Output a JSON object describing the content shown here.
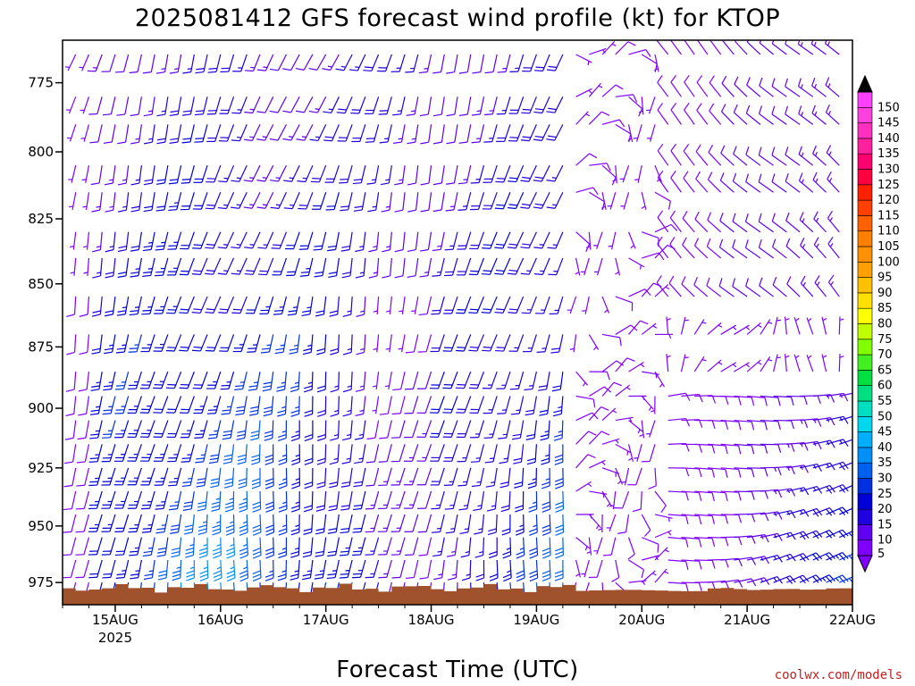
{
  "chart_data": {
    "type": "wind-barb-time-height",
    "title": "2025081412 GFS forecast wind profile (kt) for KTOP",
    "xlabel": "Forecast Time (UTC)",
    "ylabel": "",
    "x_ticks": [
      "15AUG",
      "16AUG",
      "17AUG",
      "18AUG",
      "19AUG",
      "20AUG",
      "21AUG",
      "22AUG"
    ],
    "x_year_label": "2025",
    "xlim_days": [
      14.5,
      22.0
    ],
    "y_ticks": [
      775,
      800,
      825,
      850,
      875,
      900,
      925,
      950,
      975
    ],
    "ylim_hpa": [
      985,
      760
    ],
    "levels_hpa": [
      765,
      780,
      790,
      805,
      815,
      830,
      840,
      855,
      870,
      885,
      895,
      905,
      915,
      925,
      935,
      945,
      955,
      965,
      975
    ],
    "colorbar": {
      "unit": "kt",
      "labels": [
        "5",
        "10",
        "15",
        "20",
        "25",
        "30",
        "35",
        "40",
        "45",
        "50",
        "55",
        "60",
        "65",
        "70",
        "75",
        "80",
        "85",
        "90",
        "95",
        "100",
        "105",
        "110",
        "115",
        "120",
        "125",
        "130",
        "135",
        "140",
        "145",
        "150"
      ],
      "colors": [
        "#8000ff",
        "#6000f0",
        "#2000e0",
        "#0000d8",
        "#0030e0",
        "#0060f0",
        "#0090f8",
        "#00b0ff",
        "#00d8f0",
        "#00e0c0",
        "#00e080",
        "#00e040",
        "#40f020",
        "#80ff00",
        "#c0ff00",
        "#ffff00",
        "#ffe000",
        "#ffc000",
        "#ffa000",
        "#ff9000",
        "#ff8000",
        "#ff6000",
        "#ff4000",
        "#ff2000",
        "#ff0040",
        "#ff0070",
        "#ff20a0",
        "#ff30c0",
        "#ff40e0",
        "#ff40ff"
      ]
    },
    "ground_color": "#a0522d",
    "wind_regimes": [
      {
        "t_start": 14.5,
        "t_end": 19.3,
        "description": "southerly to southwesterly, stronger at low levels"
      },
      {
        "t_start": 19.3,
        "t_end": 20.2,
        "description": "light and variable"
      },
      {
        "t_start": 20.2,
        "t_end": 22.0,
        "description": "northwesterly aloft, easterly near surface"
      }
    ]
  },
  "credit": "coolwx.com/models"
}
